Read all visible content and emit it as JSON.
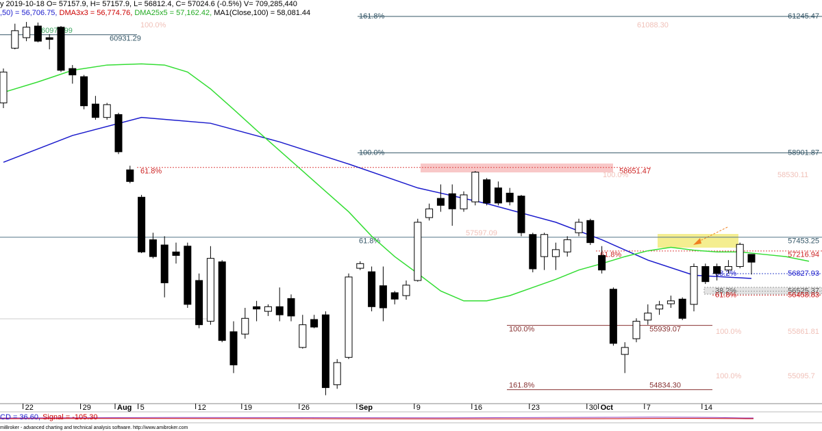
{
  "chart_data": {
    "type": "candlestick",
    "header": [
      {
        "text": "y 2019-10-18 O= 57157.9, H= 57157.9, L= 56812.4, C= 57024.6 (-0.5%) V= 709,285,440",
        "color": "#000000"
      }
    ],
    "indicators": [
      {
        "text": ",50) = 56,706.75, ",
        "color": "#1a1acc"
      },
      {
        "text": "DMA3x3 = 56,774.76, ",
        "color": "#cc0000"
      },
      {
        "text": "DMA25x5 = 57,162.42, ",
        "color": "#22aa22"
      },
      {
        "text": "MA1(Close,100) = 58,081.44",
        "color": "#000000"
      }
    ],
    "macd_text": [
      {
        "text": "CD = 36.60, ",
        "color": "#1a1acc"
      },
      {
        "text": "Signal = -105.30",
        "color": "#cc0000"
      }
    ],
    "footer": "miBroker - advanced charting and technical analysis software. http://www.amibroker.com",
    "ylim": [
      54595,
      61527
    ],
    "xticks": [
      {
        "value": 2,
        "label": "22"
      },
      {
        "value": 7,
        "label": "29"
      },
      {
        "value": 10,
        "label": "Aug"
      },
      {
        "value": 12,
        "label": "5"
      },
      {
        "value": 17,
        "label": "12"
      },
      {
        "value": 21,
        "label": "19"
      },
      {
        "value": 26,
        "label": "26"
      },
      {
        "value": 31,
        "label": "Sep"
      },
      {
        "value": 36,
        "label": "9"
      },
      {
        "value": 41,
        "label": "16"
      },
      {
        "value": 46,
        "label": "23"
      },
      {
        "value": 51,
        "label": "30"
      },
      {
        "value": 52,
        "label": "Oct"
      },
      {
        "value": 56,
        "label": "7"
      },
      {
        "value": 61,
        "label": "14"
      }
    ],
    "open": [
      59760,
      60700,
      60880,
      61080,
      60880,
      61060,
      60350,
      60210,
      59740,
      59510,
      59560,
      58610,
      58140,
      57410,
      57320,
      57200,
      57300,
      56710,
      56010,
      57030,
      55830,
      55790,
      56260,
      56180,
      56260,
      56400,
      55560,
      56040,
      56120,
      54920,
      55390,
      56920,
      56860,
      56620,
      56500,
      56450,
      56710,
      57790,
      58120,
      58200,
      57940,
      58060,
      58440,
      58300,
      58210,
      58160,
      57500,
      57120,
      57120,
      57200,
      57530,
      57740,
      57140,
      56560,
      55440,
      55710,
      56030,
      56220,
      56310,
      56390,
      56300,
      56950,
      56950,
      56890,
      56950,
      57157.9
    ],
    "high": [
      60350,
      61120,
      61150,
      61140,
      60940,
      61080,
      60410,
      60240,
      59880,
      59760,
      59590,
      58680,
      58180,
      57530,
      57470,
      57360,
      57360,
      56830,
      57300,
      57060,
      56010,
      56240,
      56360,
      56300,
      56590,
      56470,
      56120,
      56120,
      56180,
      55360,
      56830,
      57040,
      56950,
      56950,
      56530,
      56710,
      57770,
      58030,
      58360,
      58360,
      58240,
      58590,
      58470,
      58410,
      58300,
      58180,
      57530,
      57530,
      57360,
      57470,
      57770,
      57770,
      57300,
      56590,
      55650,
      56060,
      56300,
      56360,
      56450,
      56420,
      57000,
      57000,
      57000,
      57060,
      57360,
      57157.9
    ],
    "low": [
      59670,
      60680,
      60820,
      60800,
      60680,
      60290,
      60090,
      59650,
      59470,
      59470,
      58880,
      58380,
      57180,
      57090,
      56420,
      57000,
      56240,
      55890,
      55950,
      55650,
      55120,
      55710,
      56010,
      56100,
      56010,
      56010,
      55540,
      55890,
      54740,
      54850,
      55360,
      56890,
      56180,
      56010,
      56300,
      56380,
      56690,
      57740,
      57890,
      57650,
      57890,
      58000,
      58000,
      58000,
      58000,
      57470,
      56850,
      56890,
      56890,
      57120,
      57470,
      57320,
      56830,
      55590,
      55120,
      55650,
      55950,
      56120,
      56240,
      56030,
      56180,
      56650,
      56710,
      56830,
      56920,
      56812.4
    ],
    "close": [
      60290,
      61000,
      61060,
      60820,
      60850,
      60320,
      60240,
      59710,
      59510,
      59730,
      58920,
      58410,
      57200,
      57120,
      56670,
      57140,
      56300,
      55950,
      57090,
      55680,
      55260,
      56060,
      56220,
      56260,
      56120,
      56100,
      55950,
      55910,
      54870,
      55300,
      56770,
      57000,
      56260,
      56240,
      56390,
      56630,
      57710,
      57940,
      58000,
      57940,
      58180,
      58570,
      58040,
      58040,
      58060,
      57530,
      56910,
      57500,
      57240,
      57410,
      57710,
      57360,
      56890,
      55630,
      55560,
      56010,
      56150,
      56290,
      56360,
      56060,
      56950,
      56690,
      56830,
      56950,
      57330,
      57024.6
    ],
    "up_color": "#ffffff",
    "down_color": "#000000",
    "series": [
      {
        "color": "#1a1acc",
        "x": [
          0,
          6,
          12,
          18,
          24,
          30,
          36,
          42,
          48,
          52,
          56,
          60,
          65
        ],
        "values": [
          58740,
          59200,
          59510,
          59410,
          59090,
          58710,
          58300,
          58030,
          57710,
          57410,
          57060,
          56800,
          56745
        ]
      },
      {
        "color": "#33dd33",
        "x": [
          0,
          3,
          6,
          9,
          12,
          14,
          16,
          18,
          20,
          22,
          24,
          26,
          28,
          30,
          32,
          34,
          36,
          38,
          40,
          42,
          44,
          46,
          48,
          50,
          52,
          54,
          56,
          58,
          60,
          62,
          64,
          66,
          68,
          70
        ],
        "values": [
          59940,
          60120,
          60320,
          60410,
          60430,
          60410,
          60290,
          60000,
          59650,
          59290,
          58940,
          58590,
          58240,
          57890,
          57470,
          57120,
          56830,
          56530,
          56360,
          56360,
          56450,
          56590,
          56730,
          56890,
          57000,
          57120,
          57220,
          57280,
          57230,
          57200,
          57200,
          57160,
          57120,
          57040
        ]
      }
    ],
    "levels": [
      {
        "value": 61245.47,
        "pct": "161.8%"
      },
      {
        "value": 58901.87,
        "pct": "100.0%"
      },
      {
        "value": 57453.25,
        "pct": "61.8%"
      },
      {
        "value": 58651.47,
        "pct": "61.8%"
      },
      {
        "value": 57216.94,
        "pct": "61.8%"
      },
      {
        "value": 56827.93,
        "pct": "38.2%"
      },
      {
        "value": 56525.37,
        "pct": "38.2%"
      },
      {
        "value": 56458.83,
        "pct": "61.8%"
      },
      {
        "value": 55939.07,
        "pct": "100.0%"
      },
      {
        "value": 54834.3,
        "label": "54834.30",
        "pct": "161.8%"
      },
      {
        "value": 60931.29
      }
    ],
    "faded": [
      "100.0%",
      "61088.30",
      "100.0%",
      "58530.11",
      "57597.09",
      "100.0%",
      "55861.81",
      "100.0%",
      "55095.7",
      "60970.99"
    ]
  }
}
